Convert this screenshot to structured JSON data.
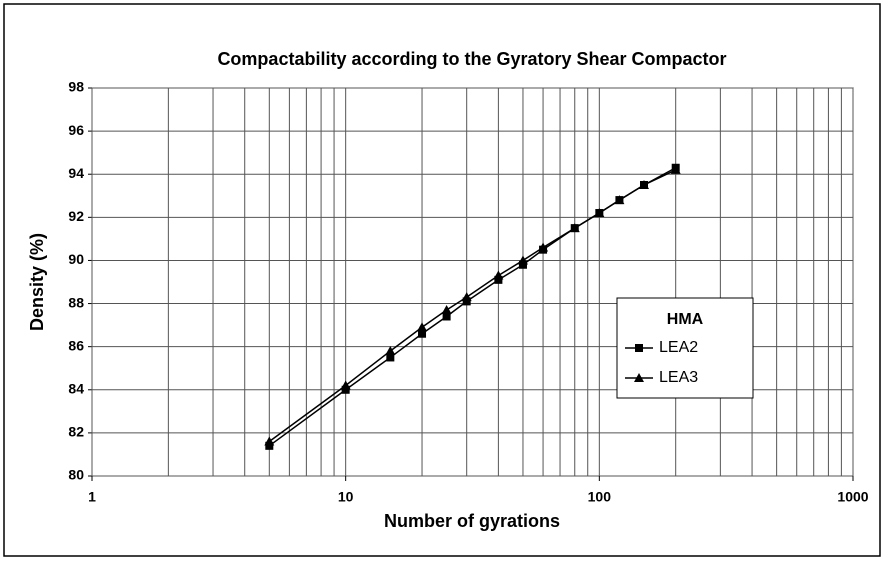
{
  "chart_data": {
    "type": "line",
    "title": "Compactability according to the Gyratory Shear Compactor",
    "xlabel": "Number of gyrations",
    "ylabel": "Density (%)",
    "x": [
      5,
      10,
      15,
      20,
      25,
      30,
      40,
      50,
      60,
      80,
      100,
      120,
      150,
      200
    ],
    "series": [
      {
        "name": "LEA2",
        "color": "#000000",
        "marker": "square",
        "values": [
          81.4,
          84.0,
          85.5,
          86.6,
          87.4,
          88.1,
          89.1,
          89.8,
          90.5,
          91.5,
          92.2,
          92.8,
          93.5,
          94.3
        ]
      },
      {
        "name": "LEA3",
        "color": "#000000",
        "marker": "triangle",
        "values": [
          81.6,
          84.2,
          85.8,
          86.9,
          87.7,
          88.3,
          89.3,
          90.0,
          90.6,
          91.5,
          92.2,
          92.8,
          93.5,
          94.2
        ]
      }
    ],
    "legend_title": "HMA",
    "legend": "right",
    "xscale": "log",
    "xlim": [
      1,
      1000
    ],
    "xticks": [
      1,
      10,
      100,
      1000
    ],
    "ylim": [
      80,
      98
    ],
    "yticks": [
      80,
      82,
      84,
      86,
      88,
      90,
      92,
      94,
      96,
      98
    ],
    "grid": true
  }
}
